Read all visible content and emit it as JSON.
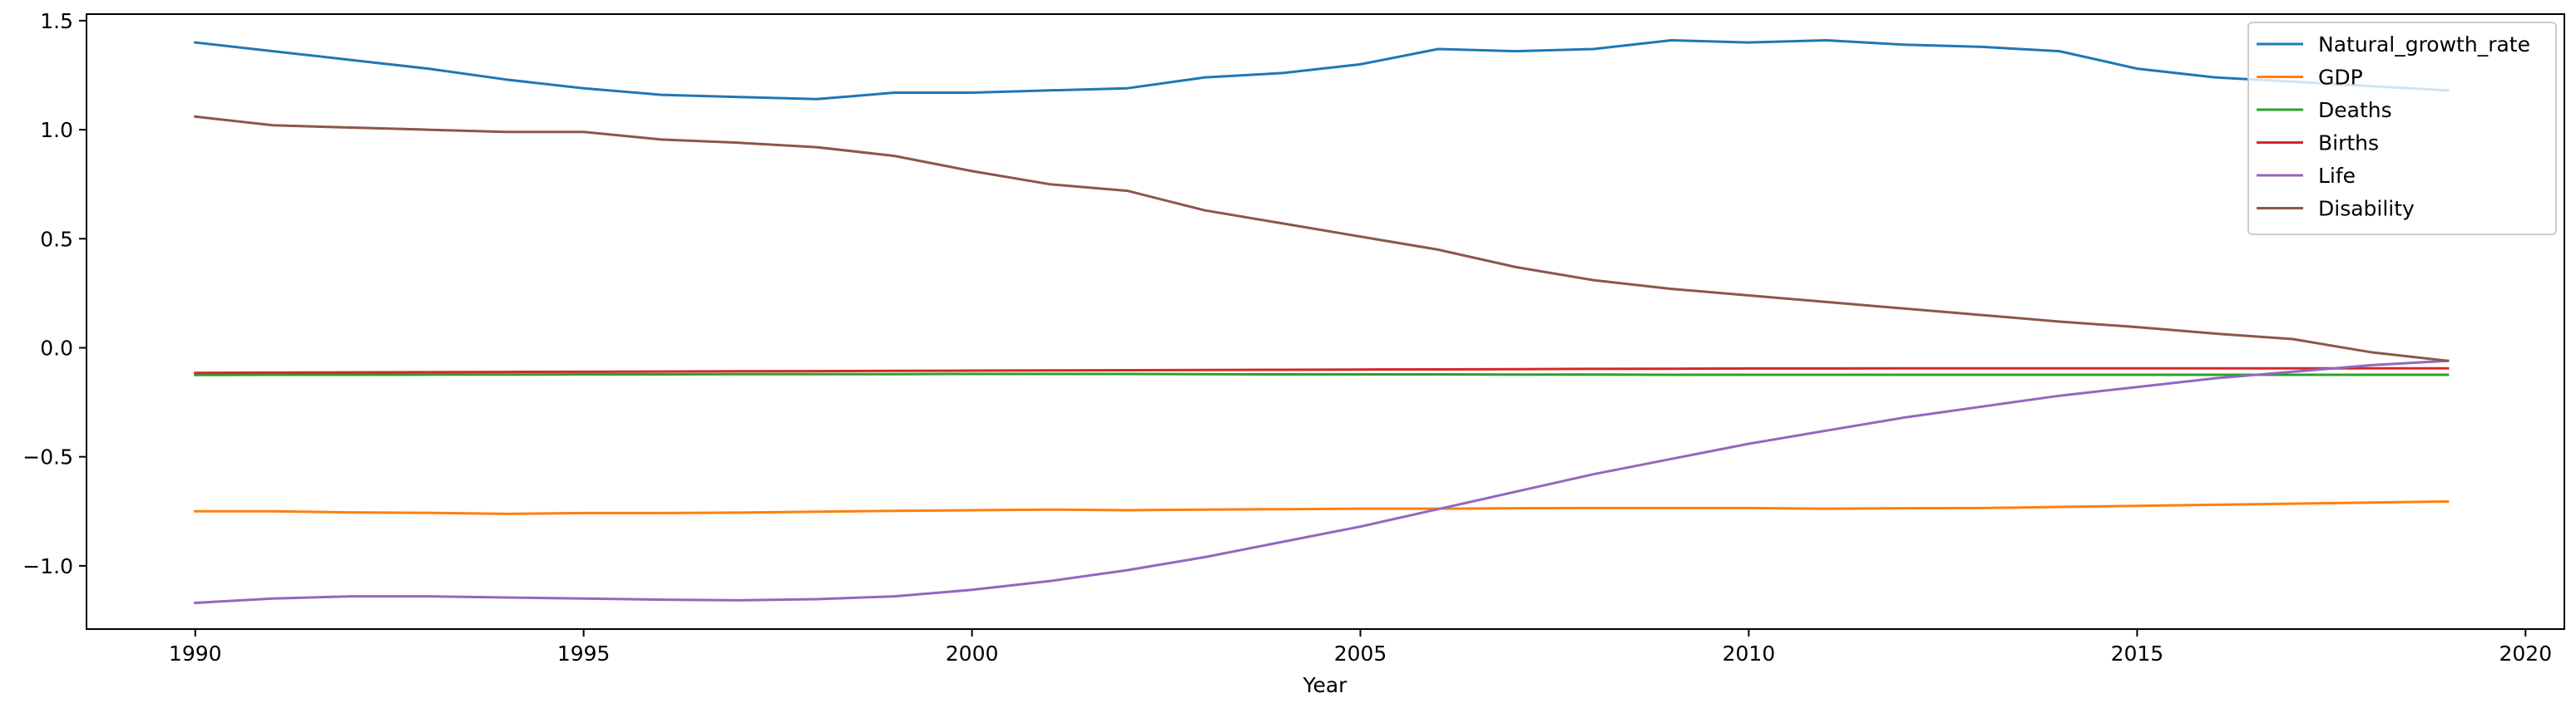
{
  "chart_data": {
    "type": "line",
    "title": "",
    "xlabel": "Year",
    "ylabel": "",
    "xlim": [
      1988.6,
      2020.5
    ],
    "ylim": [
      -1.29,
      1.53
    ],
    "xticks": [
      1990,
      1995,
      2000,
      2005,
      2010,
      2015,
      2020
    ],
    "yticks": [
      -1.0,
      -0.5,
      0.0,
      0.5,
      1.0,
      1.5
    ],
    "ytick_labels": [
      "−1.0",
      "−0.5",
      "0.0",
      "0.5",
      "1.0",
      "1.5"
    ],
    "grid": false,
    "legend_position": "top-right",
    "x": [
      1990,
      1991,
      1992,
      1993,
      1994,
      1995,
      1996,
      1997,
      1998,
      1999,
      2000,
      2001,
      2002,
      2003,
      2004,
      2005,
      2006,
      2007,
      2008,
      2009,
      2010,
      2011,
      2012,
      2013,
      2014,
      2015,
      2016,
      2017,
      2018,
      2019
    ],
    "series": [
      {
        "name": "Natural_growth_rate",
        "color": "#1f77b4",
        "values": [
          1.4,
          1.36,
          1.32,
          1.28,
          1.23,
          1.19,
          1.16,
          1.15,
          1.14,
          1.17,
          1.17,
          1.18,
          1.19,
          1.24,
          1.26,
          1.3,
          1.37,
          1.36,
          1.37,
          1.41,
          1.4,
          1.41,
          1.39,
          1.38,
          1.36,
          1.28,
          1.24,
          1.22,
          1.2,
          1.18
        ]
      },
      {
        "name": "GDP",
        "color": "#ff7f0e",
        "values": [
          -0.75,
          -0.75,
          -0.755,
          -0.757,
          -0.762,
          -0.758,
          -0.758,
          -0.756,
          -0.752,
          -0.748,
          -0.745,
          -0.742,
          -0.745,
          -0.742,
          -0.74,
          -0.738,
          -0.738,
          -0.736,
          -0.735,
          -0.735,
          -0.735,
          -0.738,
          -0.736,
          -0.735,
          -0.73,
          -0.725,
          -0.72,
          -0.715,
          -0.71,
          -0.705
        ]
      },
      {
        "name": "Deaths",
        "color": "#2ca02c",
        "values": [
          -0.125,
          -0.124,
          -0.124,
          -0.123,
          -0.123,
          -0.122,
          -0.122,
          -0.121,
          -0.121,
          -0.121,
          -0.12,
          -0.12,
          -0.12,
          -0.121,
          -0.122,
          -0.122,
          -0.122,
          -0.123,
          -0.123,
          -0.124,
          -0.124,
          -0.124,
          -0.124,
          -0.124,
          -0.124,
          -0.124,
          -0.124,
          -0.124,
          -0.124,
          -0.124
        ]
      },
      {
        "name": "Births",
        "color": "#d62728",
        "values": [
          -0.115,
          -0.114,
          -0.113,
          -0.112,
          -0.111,
          -0.11,
          -0.109,
          -0.108,
          -0.107,
          -0.106,
          -0.105,
          -0.104,
          -0.103,
          -0.102,
          -0.101,
          -0.1,
          -0.099,
          -0.098,
          -0.097,
          -0.096,
          -0.095,
          -0.095,
          -0.094,
          -0.094,
          -0.094,
          -0.094,
          -0.094,
          -0.094,
          -0.094,
          -0.094
        ]
      },
      {
        "name": "Life",
        "color": "#9467bd",
        "values": [
          -1.17,
          -1.15,
          -1.14,
          -1.14,
          -1.145,
          -1.15,
          -1.155,
          -1.158,
          -1.153,
          -1.14,
          -1.11,
          -1.07,
          -1.02,
          -0.96,
          -0.89,
          -0.82,
          -0.74,
          -0.66,
          -0.58,
          -0.51,
          -0.44,
          -0.38,
          -0.32,
          -0.27,
          -0.22,
          -0.18,
          -0.14,
          -0.11,
          -0.08,
          -0.06
        ]
      },
      {
        "name": "Disability",
        "color": "#8c564b",
        "values": [
          1.06,
          1.02,
          1.01,
          1.0,
          0.99,
          0.99,
          0.955,
          0.94,
          0.92,
          0.88,
          0.81,
          0.75,
          0.72,
          0.63,
          0.57,
          0.51,
          0.45,
          0.37,
          0.31,
          0.27,
          0.24,
          0.21,
          0.18,
          0.15,
          0.12,
          0.095,
          0.065,
          0.04,
          -0.02,
          -0.06
        ]
      }
    ]
  }
}
